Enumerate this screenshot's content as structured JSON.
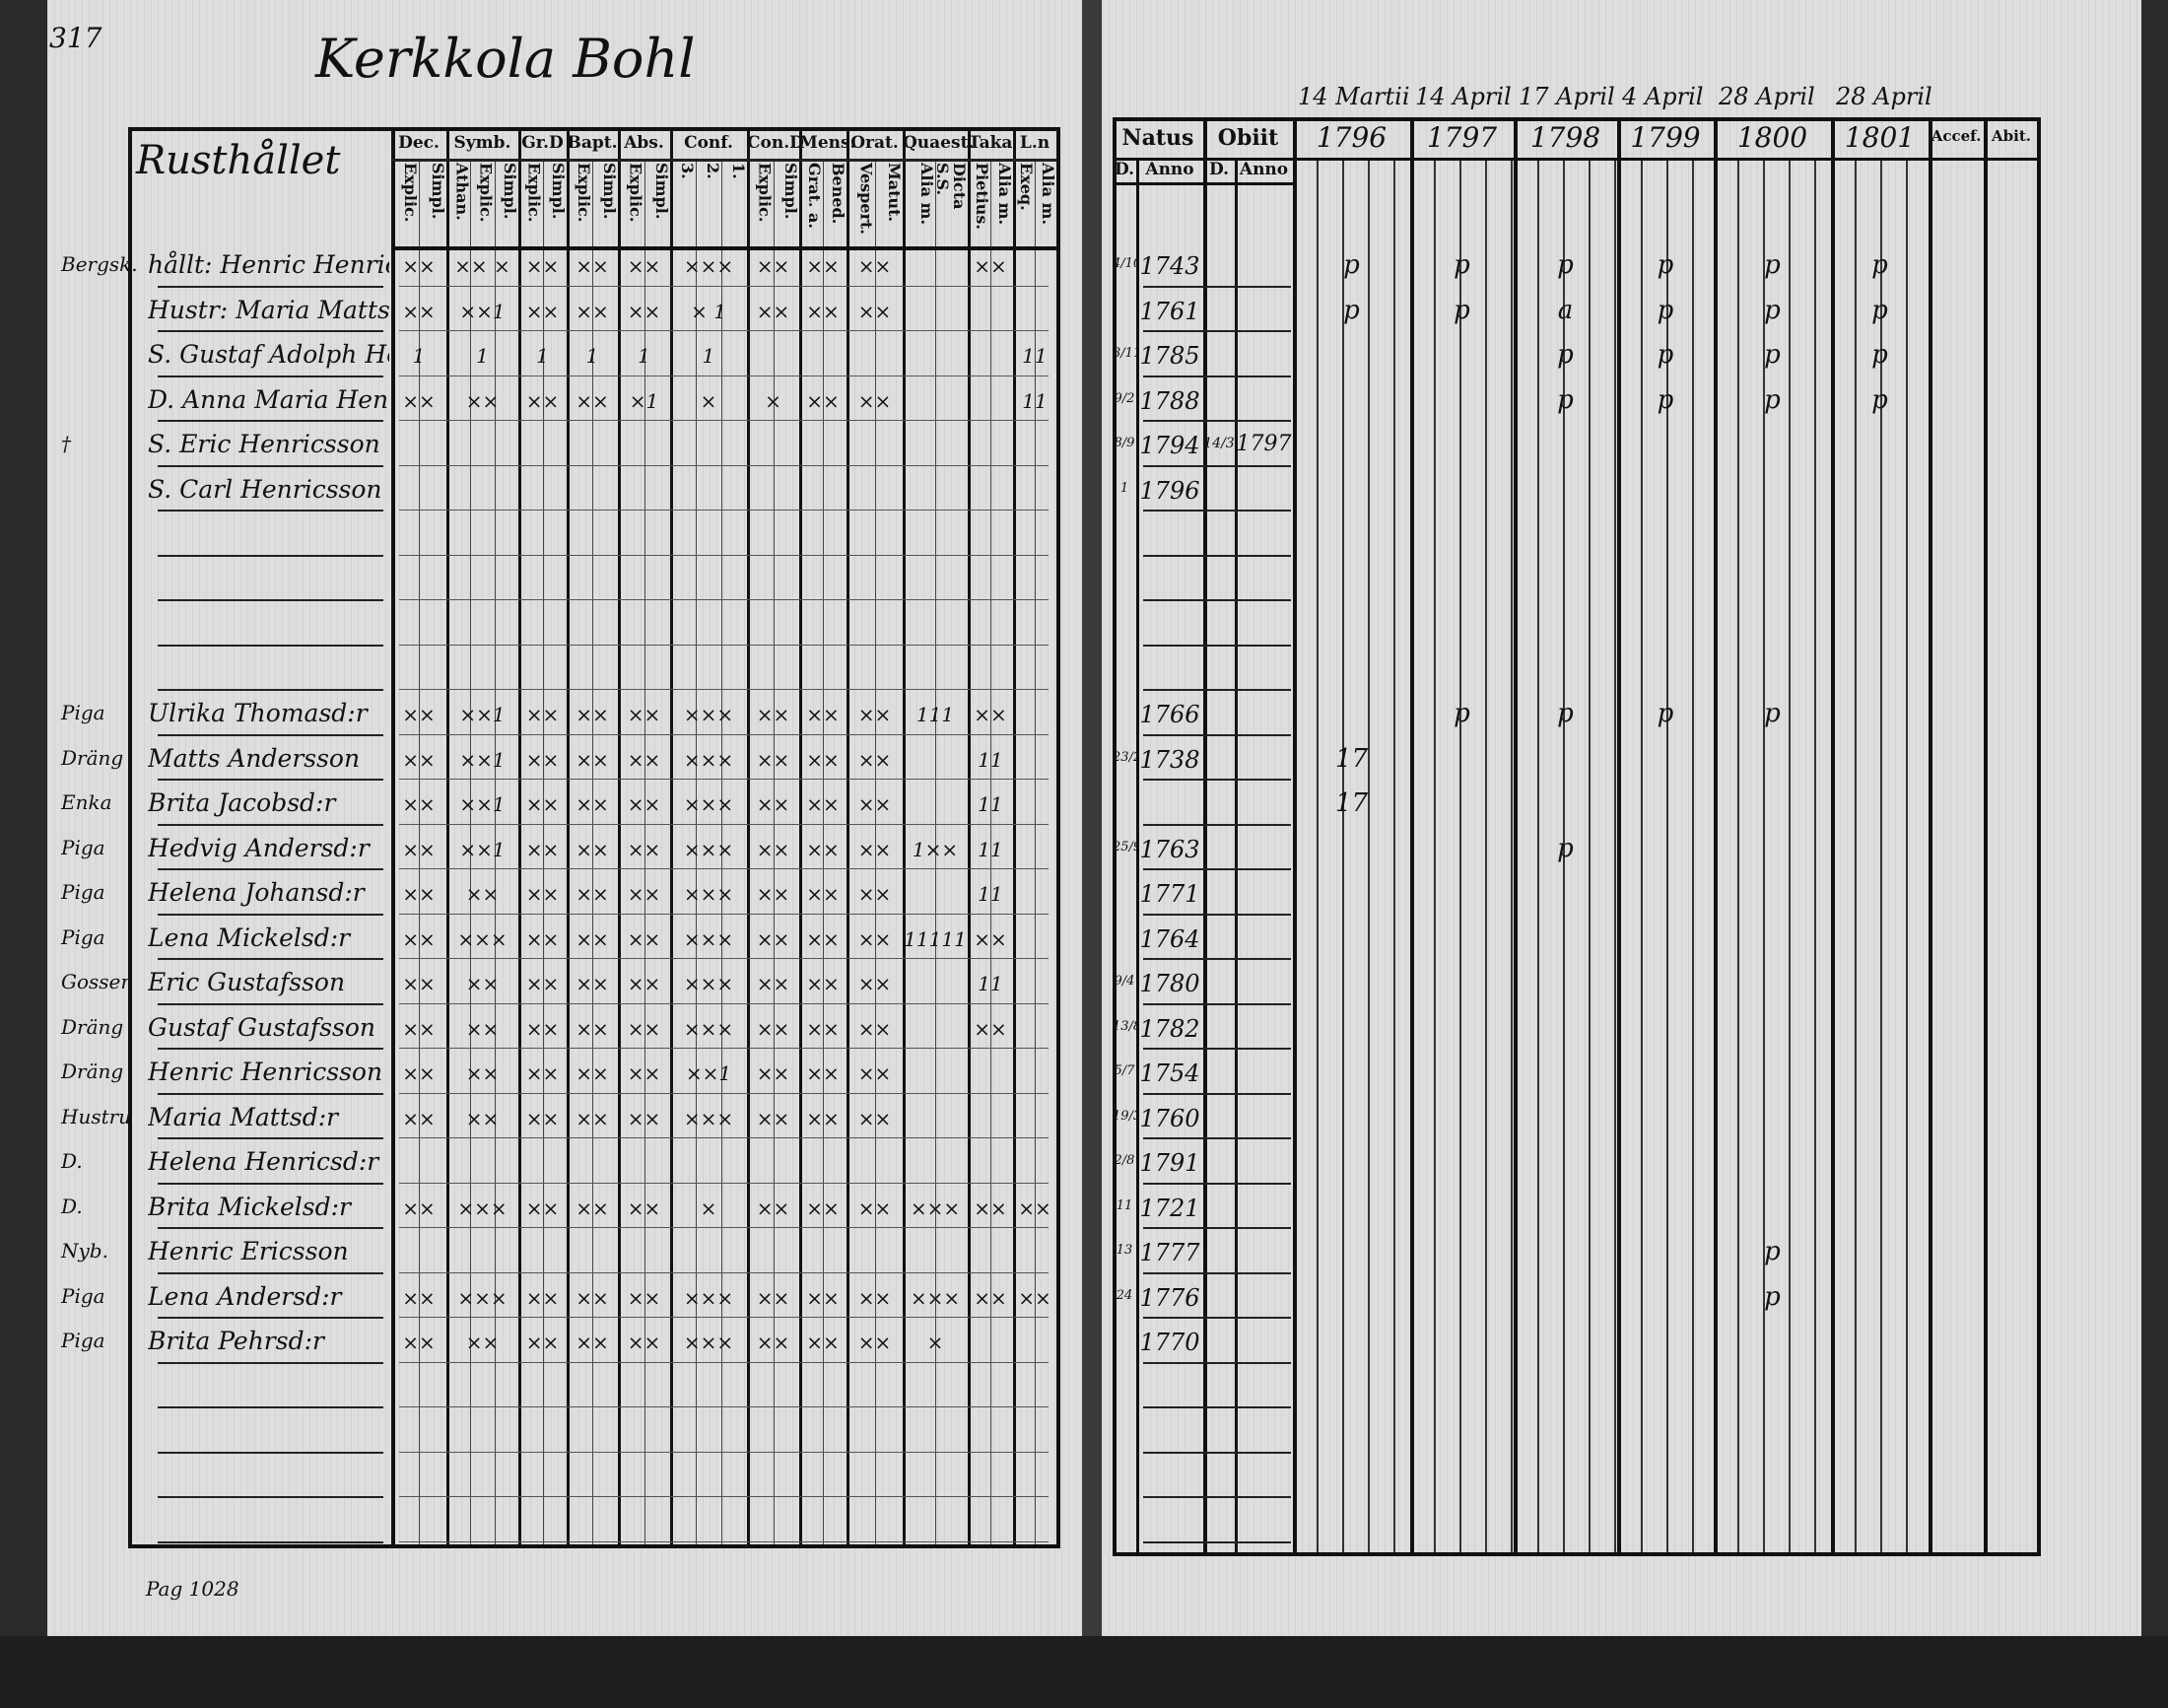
{
  "page_number": "317",
  "village_title": "Kerkkola Bohl",
  "footer_note": "Pag 1028",
  "left_table": {
    "name_header": "Rusthållet",
    "columns": [
      {
        "label": "Dec.",
        "sub": [
          "Explic.",
          "Simpl."
        ]
      },
      {
        "label": "Symb.",
        "sub": [
          "Athan.",
          "Explic.",
          "Simpl."
        ]
      },
      {
        "label": "Gr.D",
        "sub": [
          "Explic.",
          "Simpl."
        ]
      },
      {
        "label": "Bapt.",
        "sub": [
          "Explic.",
          "Simpl."
        ]
      },
      {
        "label": "Abs.",
        "sub": [
          "Explic.",
          "Simpl."
        ]
      },
      {
        "label": "Conf.",
        "sub": [
          "3.",
          "2.",
          "1."
        ]
      },
      {
        "label": "Con.D",
        "sub": [
          "Explic.",
          "Simpl."
        ]
      },
      {
        "label": "Mens.",
        "sub": [
          "Grat. a.",
          "Bened."
        ]
      },
      {
        "label": "Orat.",
        "sub": [
          "Vespert.",
          "Matut."
        ]
      },
      {
        "label": "Quaest.",
        "sub": [
          "Alia m.",
          "Dicta S.S. Pietius."
        ]
      },
      {
        "label": "Taka",
        "sub": [
          "Pietius.",
          "Alia m."
        ]
      },
      {
        "label": "L.n",
        "sub": [
          "Exeq.",
          "Alia m."
        ]
      }
    ]
  },
  "right_table": {
    "header_dates": [
      "14 Martii",
      "14 April",
      "17 April",
      "4 April",
      "28 April",
      "28 April"
    ],
    "natus": {
      "label": "Natus",
      "sub": [
        "D.",
        "Anno"
      ]
    },
    "obiit": {
      "label": "Obiit",
      "sub": [
        "D.",
        "Anno"
      ]
    },
    "years": [
      "1796",
      "1797",
      "1798",
      "1799",
      "1800",
      "1801"
    ],
    "accef": "Accef.",
    "abit": "Abit."
  },
  "rows": [
    {
      "margin": "Bergsk.",
      "name": "hållt: Henric Henricsson",
      "marks": [
        "××",
        "×× ×",
        "××",
        "××",
        "××",
        "×××",
        "××",
        "××",
        "××",
        "",
        "××",
        ""
      ],
      "natus_d": "4/10",
      "natus_anno": "1743",
      "obiit_d": "",
      "obiit_anno": "",
      "years": [
        "p",
        "p",
        "p",
        "p",
        "p",
        "p"
      ]
    },
    {
      "margin": "",
      "name": "Hustr: Maria Mattsd:r",
      "marks": [
        "××",
        "××1",
        "××",
        "××",
        "××",
        "× 1",
        "××",
        "××",
        "××",
        "",
        "",
        ""
      ],
      "natus_d": "",
      "natus_anno": "1761",
      "obiit_d": "",
      "obiit_anno": "",
      "years": [
        "p",
        "p",
        "a",
        "p",
        "p",
        "p"
      ]
    },
    {
      "margin": "",
      "name": "S. Gustaf Adolph Henricsson",
      "marks": [
        "1",
        "1",
        "1",
        "1",
        "1",
        "1",
        "",
        "",
        "",
        "",
        "",
        "11"
      ],
      "natus_d": "3/11",
      "natus_anno": "1785",
      "obiit_d": "",
      "obiit_anno": "",
      "years": [
        "",
        "",
        "p",
        "p",
        "p",
        "p"
      ]
    },
    {
      "margin": "",
      "name": "D. Anna Maria Henricsd:r",
      "marks": [
        "××",
        "××",
        "××",
        "××",
        "×1",
        "×",
        "×",
        "××",
        "××",
        "",
        "",
        "11"
      ],
      "natus_d": "9/2",
      "natus_anno": "1788",
      "obiit_d": "",
      "obiit_anno": "",
      "years": [
        "",
        "",
        "p",
        "p",
        "p",
        "p"
      ]
    },
    {
      "margin": "†",
      "name": "S. Eric Henricsson",
      "marks": [
        "",
        "",
        "",
        "",
        "",
        "",
        "",
        "",
        "",
        "",
        "",
        ""
      ],
      "natus_d": "8/9",
      "natus_anno": "1794",
      "obiit_d": "14/3",
      "obiit_anno": "1797",
      "years": [
        "",
        "",
        "",
        "",
        "",
        ""
      ]
    },
    {
      "margin": "",
      "name": "S. Carl Henricsson",
      "marks": [
        "",
        "",
        "",
        "",
        "",
        "",
        "",
        "",
        "",
        "",
        "",
        ""
      ],
      "natus_d": "1",
      "natus_anno": "1796",
      "obiit_d": "",
      "obiit_anno": "",
      "years": [
        "",
        "",
        "",
        "",
        "",
        ""
      ]
    },
    {
      "margin": "",
      "name": "",
      "marks": [
        "",
        "",
        "",
        "",
        "",
        "",
        "",
        "",
        "",
        "",
        "",
        ""
      ],
      "natus_d": "",
      "natus_anno": "",
      "obiit_d": "",
      "obiit_anno": "",
      "years": [
        "",
        "",
        "",
        "",
        "",
        ""
      ]
    },
    {
      "margin": "",
      "name": "",
      "marks": [
        "",
        "",
        "",
        "",
        "",
        "",
        "",
        "",
        "",
        "",
        "",
        ""
      ],
      "natus_d": "",
      "natus_anno": "",
      "obiit_d": "",
      "obiit_anno": "",
      "years": [
        "",
        "",
        "",
        "",
        "",
        ""
      ]
    },
    {
      "margin": "",
      "name": "",
      "marks": [
        "",
        "",
        "",
        "",
        "",
        "",
        "",
        "",
        "",
        "",
        "",
        ""
      ],
      "natus_d": "",
      "natus_anno": "",
      "obiit_d": "",
      "obiit_anno": "",
      "years": [
        "",
        "",
        "",
        "",
        "",
        ""
      ]
    },
    {
      "margin": "",
      "name": "",
      "marks": [
        "",
        "",
        "",
        "",
        "",
        "",
        "",
        "",
        "",
        "",
        "",
        ""
      ],
      "natus_d": "",
      "natus_anno": "",
      "obiit_d": "",
      "obiit_anno": "",
      "years": [
        "",
        "",
        "",
        "",
        "",
        ""
      ]
    },
    {
      "margin": "Piga",
      "name": "Ulrika Thomasd:r",
      "marks": [
        "××",
        "××1",
        "××",
        "××",
        "××",
        "×××",
        "××",
        "××",
        "××",
        "111",
        "××",
        ""
      ],
      "natus_d": "",
      "natus_anno": "1766",
      "obiit_d": "",
      "obiit_anno": "",
      "years": [
        "",
        "p",
        "p",
        "p",
        "p",
        ""
      ]
    },
    {
      "margin": "Dräng",
      "name": "Matts Andersson",
      "marks": [
        "××",
        "××1",
        "××",
        "××",
        "××",
        "×××",
        "××",
        "××",
        "××",
        "",
        "11",
        ""
      ],
      "natus_d": "23/2",
      "natus_anno": "1738",
      "obiit_d": "",
      "obiit_anno": "",
      "years": [
        "17",
        "",
        "",
        " ",
        "",
        ""
      ]
    },
    {
      "margin": "Enka",
      "name": "Brita Jacobsd:r",
      "marks": [
        "××",
        "××1",
        "××",
        "××",
        "××",
        "×××",
        "××",
        "××",
        "××",
        "",
        "11",
        ""
      ],
      "natus_d": "",
      "natus_anno": "",
      "obiit_d": "",
      "obiit_anno": "",
      "years": [
        "17",
        "",
        "",
        "",
        "",
        ""
      ]
    },
    {
      "margin": "Piga",
      "name": "Hedvig Andersd:r",
      "marks": [
        "××",
        "××1",
        "××",
        "××",
        "××",
        "×××",
        "××",
        "××",
        "××",
        "1××",
        "11",
        ""
      ],
      "natus_d": "25/9",
      "natus_anno": "1763",
      "obiit_d": "",
      "obiit_anno": "",
      "years": [
        "",
        "",
        "p",
        "",
        "",
        ""
      ]
    },
    {
      "margin": "Piga",
      "name": "Helena Johansd:r",
      "marks": [
        "××",
        "××",
        "××",
        "××",
        "××",
        "×××",
        "××",
        "××",
        "××",
        "",
        "11",
        ""
      ],
      "natus_d": "",
      "natus_anno": "1771",
      "obiit_d": "",
      "obiit_anno": "",
      "years": [
        "",
        "",
        "",
        "",
        "",
        ""
      ]
    },
    {
      "margin": "Piga",
      "name": "Lena Mickelsd:r",
      "marks": [
        "××",
        "×××",
        "××",
        "××",
        "××",
        "×××",
        "××",
        "××",
        "××",
        "11111",
        "××",
        ""
      ],
      "natus_d": "",
      "natus_anno": "1764",
      "obiit_d": "",
      "obiit_anno": "",
      "years": [
        "",
        "",
        "",
        "",
        "",
        ""
      ]
    },
    {
      "margin": "Gossen",
      "name": "Eric Gustafsson",
      "marks": [
        "××",
        "××",
        "××",
        "××",
        "××",
        "×××",
        "××",
        "××",
        "××",
        "",
        "11",
        ""
      ],
      "natus_d": "9/4",
      "natus_anno": "1780",
      "obiit_d": "",
      "obiit_anno": "",
      "years": [
        "",
        "",
        "",
        "",
        "",
        ""
      ]
    },
    {
      "margin": "Dräng",
      "name": "Gustaf Gustafsson",
      "marks": [
        "××",
        "××",
        "××",
        "××",
        "××",
        "×××",
        "××",
        "××",
        "××",
        "",
        "××",
        ""
      ],
      "natus_d": "13/8",
      "natus_anno": "1782",
      "obiit_d": "",
      "obiit_anno": "",
      "years": [
        "",
        "",
        "",
        "",
        "",
        ""
      ]
    },
    {
      "margin": "Dräng",
      "name": "Henric Henricsson",
      "marks": [
        "××",
        "××",
        "××",
        "××",
        "××",
        "××1",
        "××",
        "××",
        "××",
        "",
        "",
        ""
      ],
      "natus_d": "5/7",
      "natus_anno": "1754",
      "obiit_d": "",
      "obiit_anno": "",
      "years": [
        "",
        "",
        "",
        "",
        "",
        ""
      ]
    },
    {
      "margin": "Hustru",
      "name": "Maria Mattsd:r",
      "marks": [
        "××",
        "××",
        "××",
        "××",
        "××",
        "×××",
        "××",
        "××",
        "××",
        "",
        "",
        ""
      ],
      "natus_d": "19/3",
      "natus_anno": "1760",
      "obiit_d": "",
      "obiit_anno": "",
      "years": [
        "",
        "",
        "",
        "",
        "",
        ""
      ]
    },
    {
      "margin": "D.",
      "name": "Helena Henricsd:r",
      "marks": [
        "",
        "",
        "",
        "",
        "",
        "",
        "",
        "",
        "",
        "",
        "",
        ""
      ],
      "natus_d": "2/8",
      "natus_anno": "1791",
      "obiit_d": "",
      "obiit_anno": "",
      "years": [
        "",
        "",
        "",
        "",
        "",
        ""
      ]
    },
    {
      "margin": "D.",
      "name": "Brita Mickelsd:r",
      "marks": [
        "××",
        "×××",
        "××",
        "××",
        "××",
        "×",
        "××",
        "××",
        "××",
        "×××",
        "××",
        "××"
      ],
      "natus_d": "11",
      "natus_anno": "1721",
      "obiit_d": "",
      "obiit_anno": "",
      "years": [
        "",
        "",
        "",
        "",
        "",
        ""
      ]
    },
    {
      "margin": "Nyb.",
      "name": "Henric Ericsson",
      "marks": [
        "",
        "",
        "",
        "",
        "",
        "",
        "",
        "",
        "",
        "",
        "",
        ""
      ],
      "natus_d": "13",
      "natus_anno": "1777",
      "obiit_d": "",
      "obiit_anno": "",
      "years": [
        "",
        "",
        "",
        "",
        "p",
        ""
      ]
    },
    {
      "margin": "Piga",
      "name": "Lena Andersd:r",
      "marks": [
        "××",
        "×××",
        "××",
        "××",
        "××",
        "×××",
        "××",
        "××",
        "××",
        "×××",
        "××",
        "××"
      ],
      "natus_d": "24",
      "natus_anno": "1776",
      "obiit_d": "",
      "obiit_anno": "",
      "years": [
        "",
        "",
        "",
        "",
        "p",
        ""
      ]
    },
    {
      "margin": "Piga",
      "name": "Brita Pehrsd:r",
      "marks": [
        "××",
        "××",
        "××",
        "××",
        "××",
        "×××",
        "××",
        "××",
        "××",
        "×",
        "",
        ""
      ],
      "natus_d": "",
      "natus_anno": "1770",
      "obiit_d": "",
      "obiit_anno": "",
      "years": [
        "",
        "",
        "",
        "",
        "",
        ""
      ]
    }
  ]
}
